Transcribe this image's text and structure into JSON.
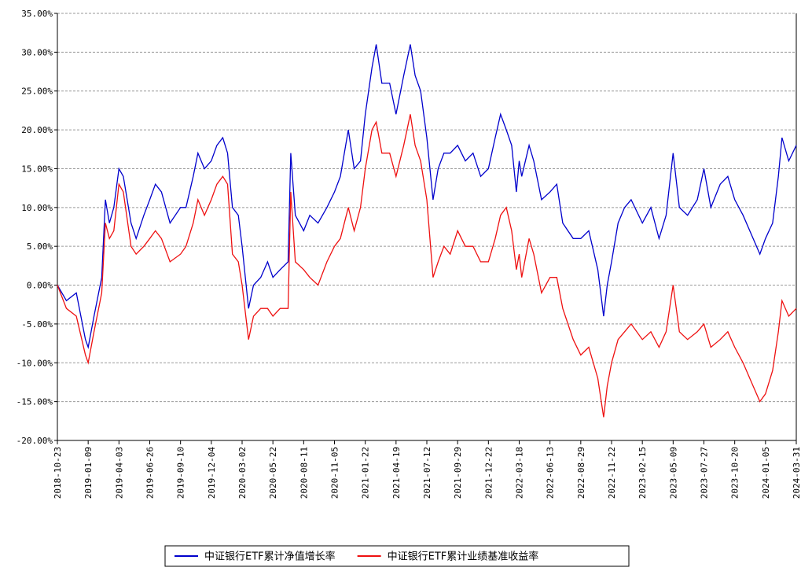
{
  "chart_data": {
    "type": "line",
    "x": [
      "2018-10-23",
      "2018-11-15",
      "2018-12-10",
      "2019-01-02",
      "2019-01-09",
      "2019-01-25",
      "2019-02-15",
      "2019-02-25",
      "2019-03-08",
      "2019-03-20",
      "2019-04-03",
      "2019-04-15",
      "2019-05-06",
      "2019-05-20",
      "2019-06-10",
      "2019-06-26",
      "2019-07-10",
      "2019-07-25",
      "2019-08-15",
      "2019-09-10",
      "2019-09-25",
      "2019-10-15",
      "2019-10-28",
      "2019-11-15",
      "2019-12-04",
      "2019-12-20",
      "2020-01-06",
      "2020-01-20",
      "2020-02-03",
      "2020-02-20",
      "2020-03-02",
      "2020-03-19",
      "2020-04-01",
      "2020-04-20",
      "2020-05-08",
      "2020-05-22",
      "2020-06-10",
      "2020-07-01",
      "2020-07-08",
      "2020-07-20",
      "2020-08-11",
      "2020-08-28",
      "2020-09-20",
      "2020-10-15",
      "2020-11-05",
      "2020-11-20",
      "2020-12-10",
      "2020-12-25",
      "2021-01-10",
      "2021-01-22",
      "2021-02-10",
      "2021-02-22",
      "2021-03-10",
      "2021-04-01",
      "2021-04-19",
      "2021-05-10",
      "2021-05-28",
      "2021-06-10",
      "2021-06-25",
      "2021-07-12",
      "2021-07-28",
      "2021-08-10",
      "2021-08-25",
      "2021-09-10",
      "2021-09-29",
      "2021-10-20",
      "2021-11-10",
      "2021-12-01",
      "2021-12-22",
      "2022-01-10",
      "2022-01-25",
      "2022-02-10",
      "2022-02-25",
      "2022-03-10",
      "2022-03-18",
      "2022-03-25",
      "2022-04-15",
      "2022-04-28",
      "2022-05-20",
      "2022-06-13",
      "2022-06-30",
      "2022-07-15",
      "2022-08-10",
      "2022-08-29",
      "2022-09-20",
      "2022-10-15",
      "2022-10-31",
      "2022-11-10",
      "2022-11-22",
      "2022-12-10",
      "2022-12-28",
      "2023-01-15",
      "2023-02-15",
      "2023-03-10",
      "2023-04-01",
      "2023-04-20",
      "2023-05-09",
      "2023-05-25",
      "2023-06-15",
      "2023-07-10",
      "2023-07-27",
      "2023-08-15",
      "2023-09-10",
      "2023-10-01",
      "2023-10-20",
      "2023-11-10",
      "2023-12-05",
      "2023-12-22",
      "2024-01-05",
      "2024-01-25",
      "2024-02-10",
      "2024-02-20",
      "2024-03-10",
      "2024-03-31"
    ],
    "series": [
      {
        "name": "中证银行ETF累计净值增长率",
        "color": "#0000cc",
        "values": [
          0,
          -2,
          -1,
          -7,
          -8,
          -4,
          1,
          11,
          8,
          10,
          15,
          14,
          8,
          6,
          9,
          11,
          13,
          12,
          8,
          10,
          10,
          14,
          17,
          15,
          16,
          18,
          19,
          17,
          10,
          9,
          5,
          -3,
          0,
          1,
          3,
          1,
          2,
          3,
          17,
          9,
          7,
          9,
          8,
          10,
          12,
          14,
          20,
          15,
          16,
          22,
          28,
          31,
          26,
          26,
          22,
          27,
          31,
          27,
          25,
          19,
          11,
          15,
          17,
          17,
          18,
          16,
          17,
          14,
          15,
          19,
          22,
          20,
          18,
          12,
          16,
          14,
          18,
          16,
          11,
          12,
          13,
          8,
          6,
          6,
          7,
          2,
          -4,
          0,
          3,
          8,
          10,
          11,
          8,
          10,
          6,
          9,
          17,
          10,
          9,
          11,
          15,
          10,
          13,
          14,
          11,
          9,
          6,
          4,
          6,
          8,
          14,
          19,
          16,
          18
        ]
      },
      {
        "name": "中证银行ETF累计业绩基准收益率",
        "color": "#ee1111",
        "values": [
          0,
          -3,
          -4,
          -9,
          -10,
          -6,
          -1,
          8,
          6,
          7,
          13,
          12,
          5,
          4,
          5,
          6,
          7,
          6,
          3,
          4,
          5,
          8,
          11,
          9,
          11,
          13,
          14,
          13,
          4,
          3,
          0,
          -7,
          -4,
          -3,
          -3,
          -4,
          -3,
          -3,
          12,
          3,
          2,
          1,
          0,
          3,
          5,
          6,
          10,
          7,
          10,
          15,
          20,
          21,
          17,
          17,
          14,
          18,
          22,
          18,
          16,
          11,
          1,
          3,
          5,
          4,
          7,
          5,
          5,
          3,
          3,
          6,
          9,
          10,
          7,
          2,
          4,
          1,
          6,
          4,
          -1,
          1,
          1,
          -3,
          -7,
          -9,
          -8,
          -12,
          -17,
          -13,
          -10,
          -7,
          -6,
          -5,
          -7,
          -6,
          -8,
          -6,
          0,
          -6,
          -7,
          -6,
          -5,
          -8,
          -7,
          -6,
          -8,
          -10,
          -13,
          -15,
          -14,
          -11,
          -6,
          -2,
          -4,
          -3
        ]
      }
    ],
    "ylim": [
      -20,
      35
    ],
    "yticks": [
      {
        "value": -20,
        "label": "-20.00%"
      },
      {
        "value": -15,
        "label": "-15.00%"
      },
      {
        "value": -10,
        "label": "-10.00%"
      },
      {
        "value": -5,
        "label": "-5.00%"
      },
      {
        "value": 0,
        "label": "0.00%"
      },
      {
        "value": 5,
        "label": "5.00%"
      },
      {
        "value": 10,
        "label": "10.00%"
      },
      {
        "value": 15,
        "label": "15.00%"
      },
      {
        "value": 20,
        "label": "20.00%"
      },
      {
        "value": 25,
        "label": "25.00%"
      },
      {
        "value": 30,
        "label": "30.00%"
      },
      {
        "value": 35,
        "label": "35.00%"
      }
    ],
    "xlim": [
      "2018-10-23",
      "2024-03-31"
    ],
    "xticks": [
      "2018-10-23",
      "2019-01-09",
      "2019-04-03",
      "2019-06-26",
      "2019-09-10",
      "2019-12-04",
      "2020-03-02",
      "2020-05-22",
      "2020-08-11",
      "2020-11-05",
      "2021-01-22",
      "2021-04-19",
      "2021-07-12",
      "2021-09-29",
      "2021-12-22",
      "2022-03-18",
      "2022-06-13",
      "2022-08-29",
      "2022-11-22",
      "2023-02-15",
      "2023-05-09",
      "2023-07-27",
      "2023-10-20",
      "2024-01-05",
      "2024-03-31"
    ],
    "grid": true
  }
}
